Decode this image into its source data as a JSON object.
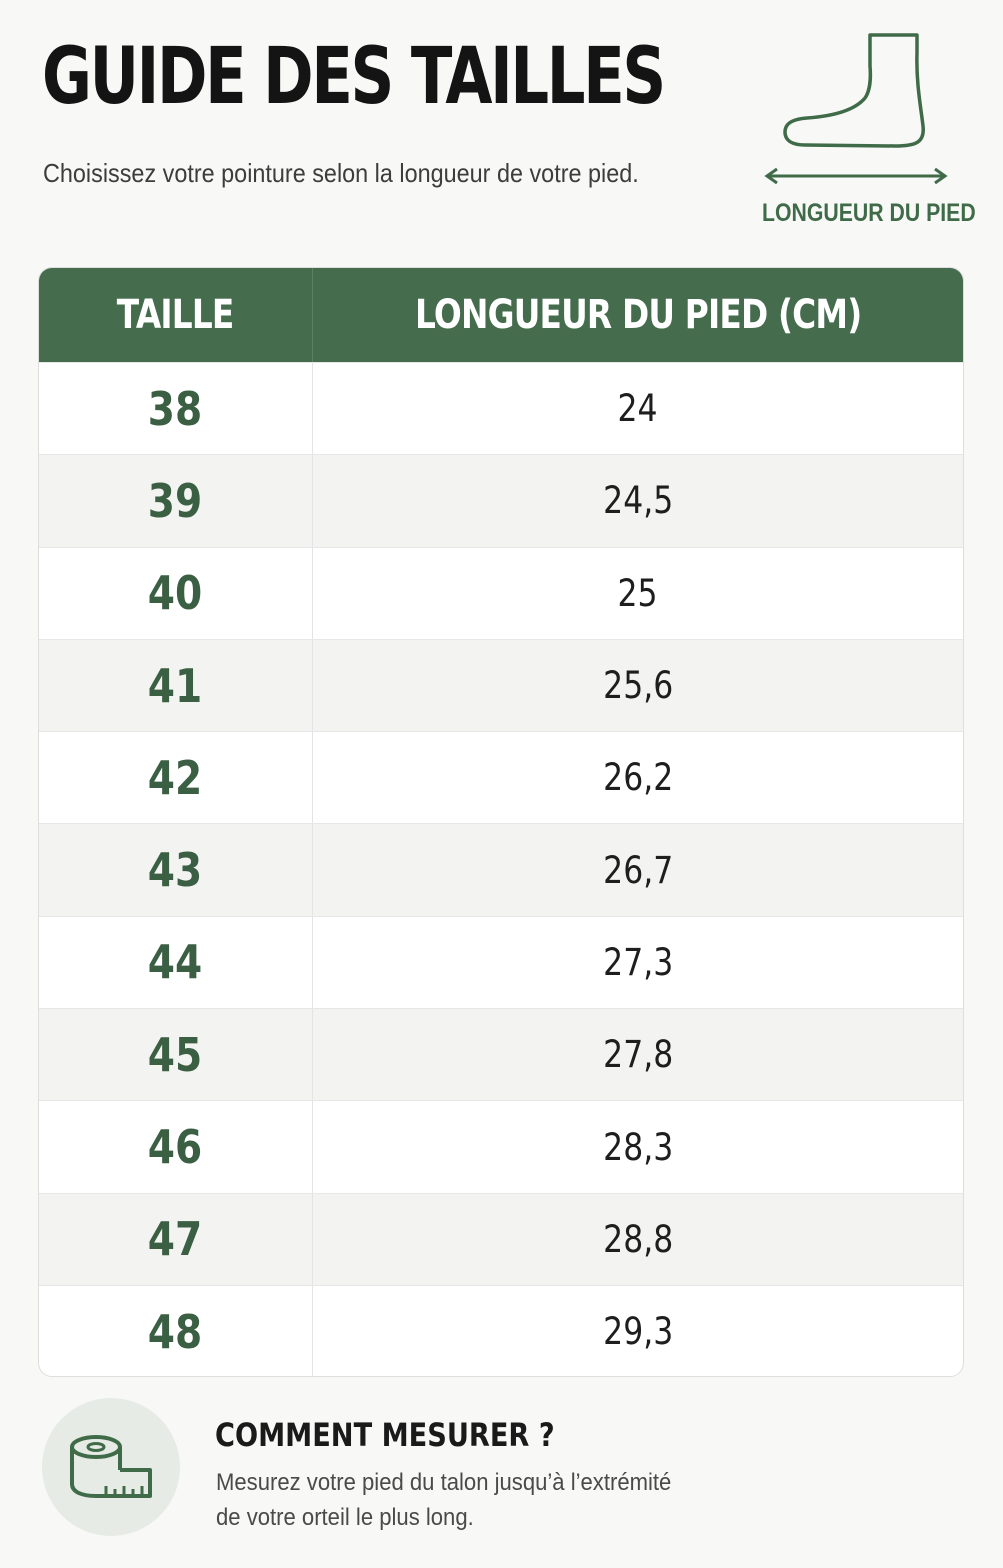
{
  "header": {
    "title": "GUIDE DES TAILLES",
    "subtitle": "Choisissez votre pointure selon la longueur de votre pied."
  },
  "illustration": {
    "icon": "foot-icon",
    "label": "LONGUEUR DU PIED"
  },
  "table": {
    "columns": [
      "TAILLE",
      "LONGUEUR DU PIED (CM)"
    ],
    "rows": [
      {
        "size": "38",
        "length": "24"
      },
      {
        "size": "39",
        "length": "24,5"
      },
      {
        "size": "40",
        "length": "25"
      },
      {
        "size": "41",
        "length": "25,6"
      },
      {
        "size": "42",
        "length": "26,2"
      },
      {
        "size": "43",
        "length": "26,7"
      },
      {
        "size": "44",
        "length": "27,3"
      },
      {
        "size": "45",
        "length": "27,8"
      },
      {
        "size": "46",
        "length": "28,3"
      },
      {
        "size": "47",
        "length": "28,8"
      },
      {
        "size": "48",
        "length": "29,3"
      }
    ]
  },
  "tip": {
    "icon": "measuring-tape-icon",
    "title": "COMMENT MESURER ?",
    "lines": [
      "Mesurez votre pied du talon jusqu’à l’extrémité",
      "de votre orteil le plus long."
    ]
  },
  "colors": {
    "accent": "#466c4e",
    "size_text": "#3b5f43",
    "background": "#f8f8f7"
  }
}
